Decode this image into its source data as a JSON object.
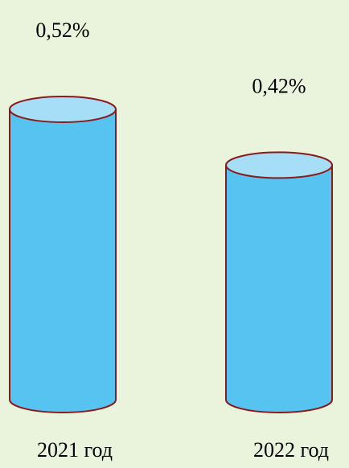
{
  "chart_data": {
    "type": "bar",
    "style": "cylinder",
    "categories": [
      "2021 год",
      "2022 год"
    ],
    "values": [
      0.52,
      0.42
    ],
    "value_labels": [
      "0,52%",
      "0,42%"
    ],
    "unit": "%",
    "title": "",
    "xlabel": "",
    "ylabel": "",
    "ylim": [
      0,
      0.52
    ],
    "grid": false,
    "legend": "none",
    "colors": {
      "background": "#eaf3dc",
      "body": "#56c3f1",
      "top": "#a6def8",
      "outline": "#8b1a1a"
    }
  }
}
